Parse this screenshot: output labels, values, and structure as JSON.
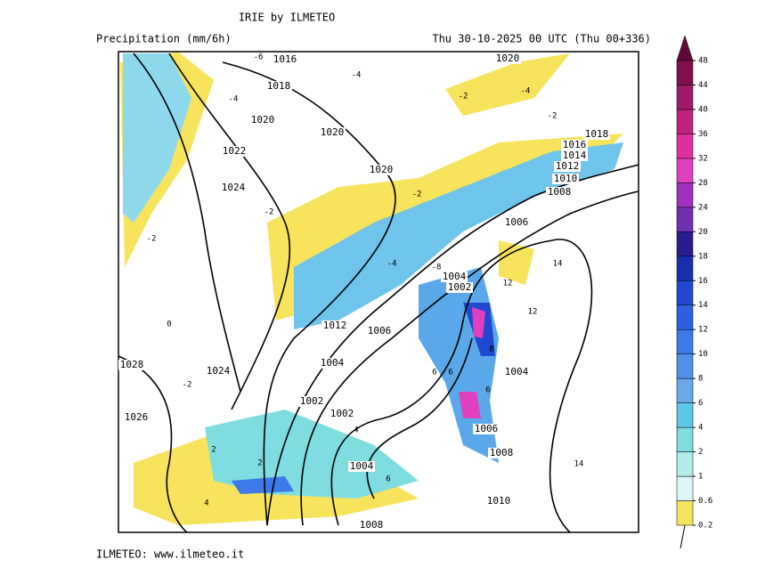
{
  "header": {
    "title": "IRIE by ILMETEO",
    "subtitle": "Precipitation (mm/6h)",
    "run": "Thu 30-10-2025 00 UTC (Thu 00+336)"
  },
  "footer": {
    "credit": "ILMETEO: www.ilmeteo.it"
  },
  "colorbar": {
    "levels": [
      0.2,
      0.6,
      1,
      2,
      4,
      6,
      8,
      10,
      12,
      14,
      16,
      18,
      20,
      24,
      28,
      32,
      36,
      40,
      44,
      48
    ],
    "colors": [
      "#f7e35c",
      "#dcf6f6",
      "#b0ece8",
      "#7fdde0",
      "#5cc8e8",
      "#6aa8e8",
      "#5090e8",
      "#3c7ae8",
      "#2c60e0",
      "#2048d0",
      "#1830b0",
      "#2a1c90",
      "#7030b0",
      "#a030c0",
      "#e040c0",
      "#e030a0",
      "#c02080",
      "#a01868",
      "#80104c",
      "#600838"
    ]
  },
  "map": {
    "isobar_labels": [
      "1016",
      "1018",
      "1020",
      "1022",
      "1024",
      "1020",
      "1020",
      "1020",
      "1018",
      "1016",
      "1014",
      "1012",
      "1010",
      "1008",
      "1006",
      "1004",
      "1002",
      "1012",
      "1006",
      "1004",
      "1002",
      "1002",
      "1004",
      "1028",
      "1026",
      "1024",
      "1006",
      "1008",
      "1010",
      "1008",
      "1004"
    ],
    "contour_labels": [
      "-6",
      "-4",
      "-2",
      "-2",
      "-4",
      "-2",
      "-2",
      "-4",
      "-2",
      "0",
      "2",
      "4",
      "6",
      "6",
      "8",
      "12",
      "12",
      "14",
      "14",
      "-2",
      "2",
      "4",
      "6",
      "6",
      "-8",
      "-4"
    ]
  }
}
